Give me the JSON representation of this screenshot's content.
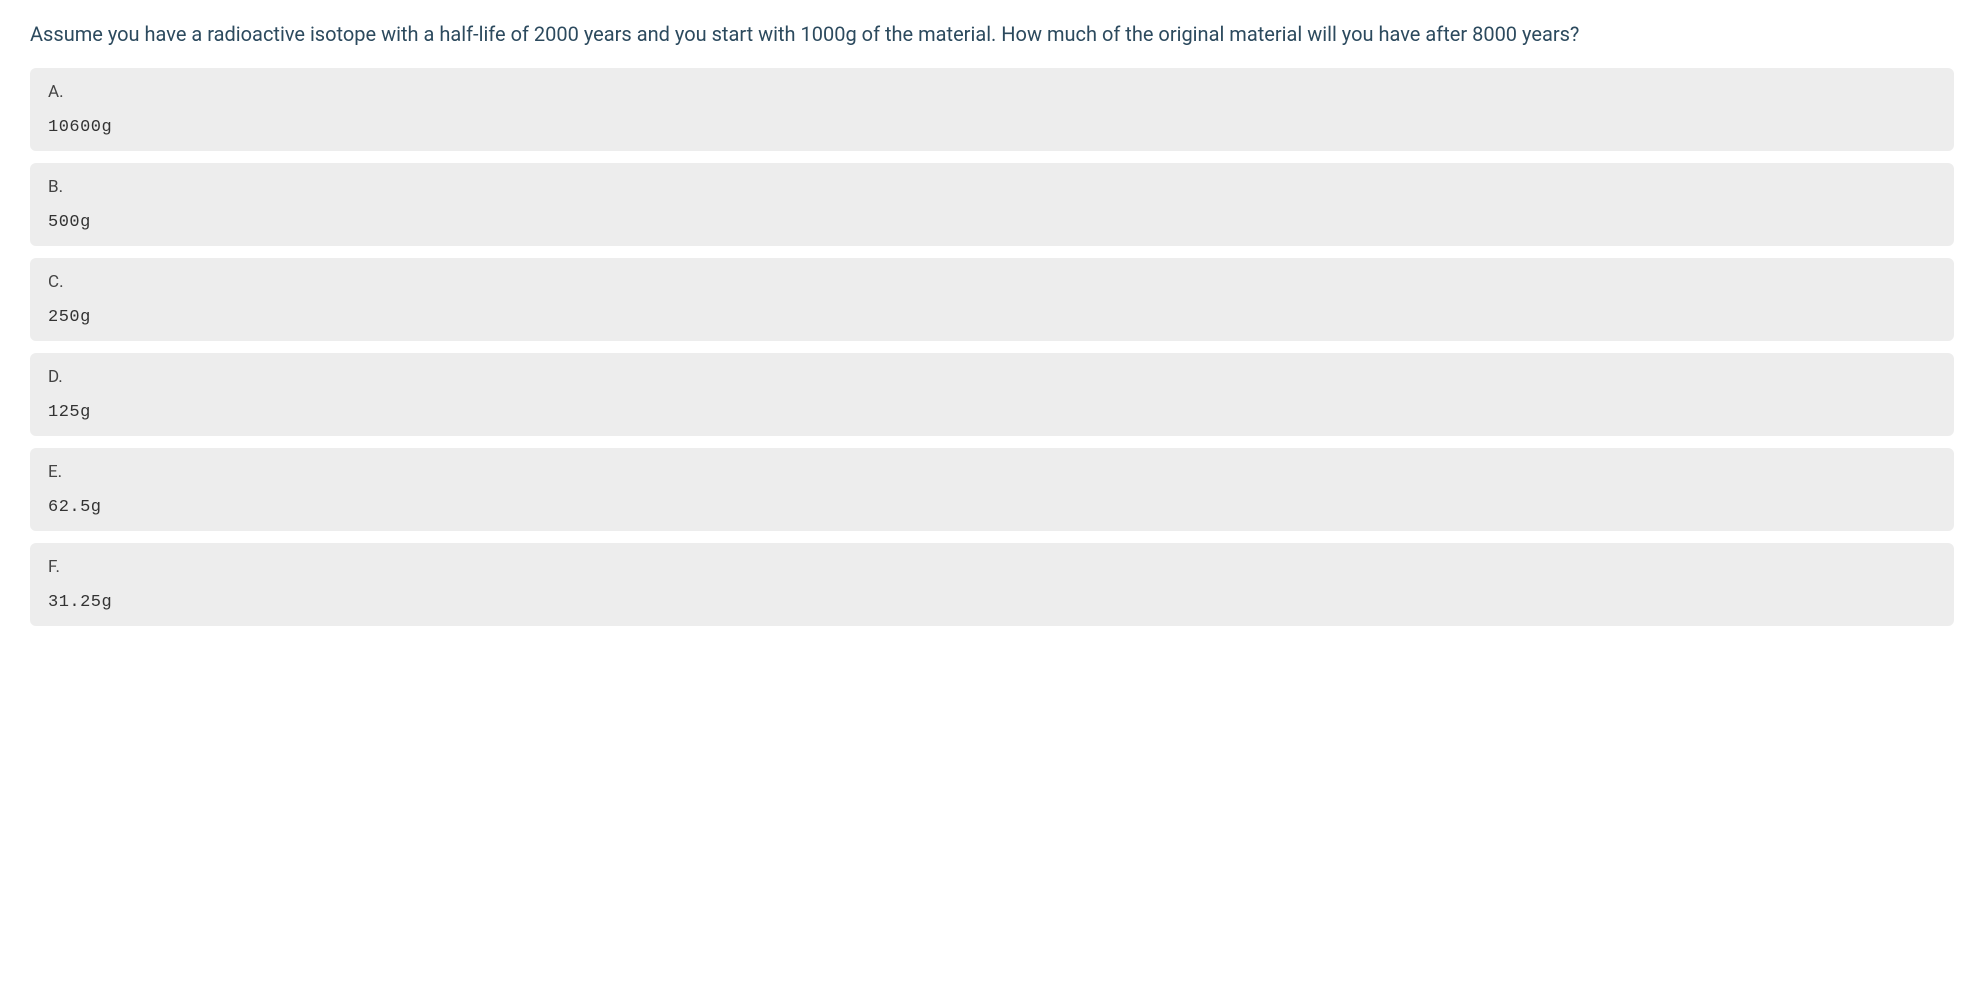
{
  "question": {
    "text": "Assume you have a radioactive isotope with a half-life of 2000 years and you start with 1000g of the material. How much of the original material will you have after 8000 years?",
    "text_color": "#2c4a5e",
    "font_size": 20
  },
  "options": [
    {
      "letter": "A.",
      "value": "10600g"
    },
    {
      "letter": "B.",
      "value": "500g"
    },
    {
      "letter": "C.",
      "value": "250g"
    },
    {
      "letter": "D.",
      "value": "125g"
    },
    {
      "letter": "E.",
      "value": "62.5g"
    },
    {
      "letter": "F.",
      "value": "31.25g"
    }
  ],
  "styling": {
    "option_background": "#ededed",
    "option_border_radius": 6,
    "option_letter_color": "#444444",
    "option_value_color": "#333333",
    "option_font_size": 17,
    "page_background": "#ffffff"
  }
}
